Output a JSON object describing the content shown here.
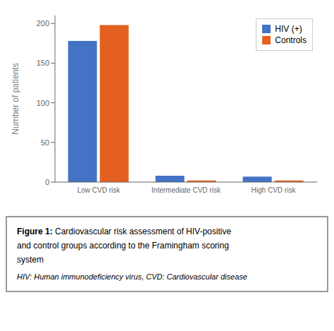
{
  "chart_data": {
    "type": "bar",
    "categories": [
      "Low CVD risk",
      "Intermediate CVD risk",
      "High CVD risk"
    ],
    "series": [
      {
        "name": "HIV (+)",
        "color": "#4472C4",
        "values": [
          178,
          8,
          7
        ]
      },
      {
        "name": "Controls",
        "color": "#E36020",
        "values": [
          198,
          2,
          2
        ]
      }
    ],
    "y_label": "Number of patients",
    "ylim": [
      0,
      210
    ],
    "yticks": [
      0,
      50,
      100,
      150,
      200
    ],
    "grid": false,
    "legend": "upper right",
    "annotations": [
      "Figure 1:",
      "Cardiovascular risk assessment of HIV-positive",
      "and control groups according to the Framingham scoring",
      "system",
      "HIV: Human immunodeficiency virus, CVD: Cardiovascular disease"
    ]
  }
}
